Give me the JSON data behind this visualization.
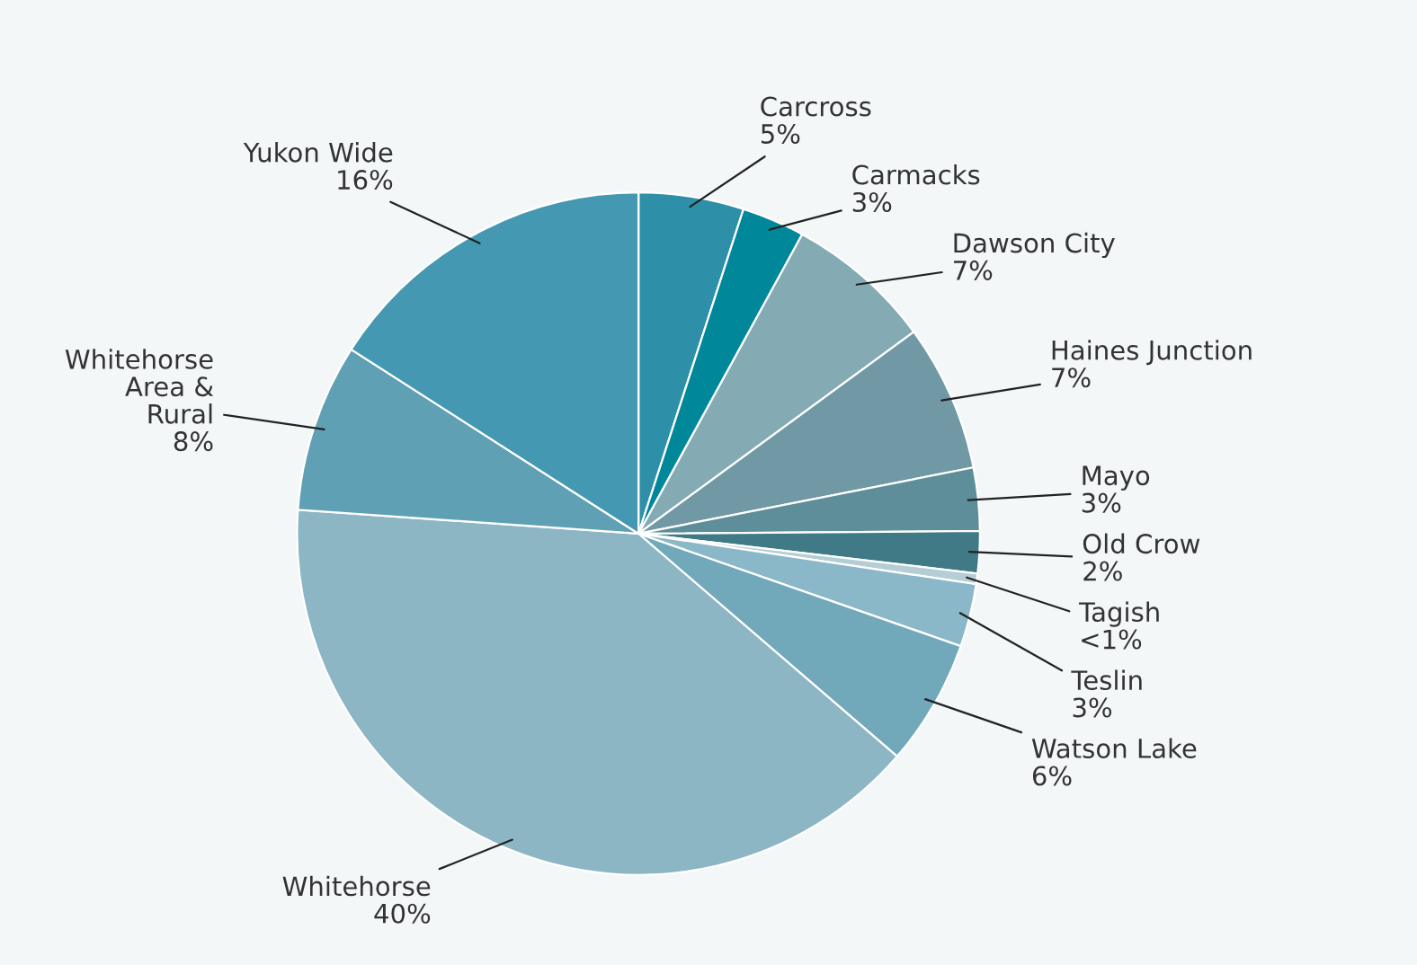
{
  "chart_data": {
    "type": "pie",
    "categories": [
      "Carcross",
      "Carmacks",
      "Dawson City",
      "Haines Junction",
      "Mayo",
      "Old Crow",
      "Tagish",
      "Teslin",
      "Watson Lake",
      "Whitehorse",
      "Whitehorse Area & Rural",
      "Yukon Wide"
    ],
    "values": [
      5,
      3,
      7,
      7,
      3,
      2,
      0.5,
      3,
      6,
      40,
      8,
      16
    ],
    "value_labels": [
      "5%",
      "3%",
      "7%",
      "7%",
      "3%",
      "2%",
      "<1%",
      "3%",
      "6%",
      "40%",
      "8%",
      "16%"
    ],
    "colors": [
      "#2e8fa8",
      "#00889a",
      "#84aab4",
      "#7199a5",
      "#5e8e9a",
      "#3f7a86",
      "#b5cdd5",
      "#8bb8c8",
      "#72a9ba",
      "#8db6c5",
      "#5fa0b4",
      "#4598b1"
    ]
  }
}
